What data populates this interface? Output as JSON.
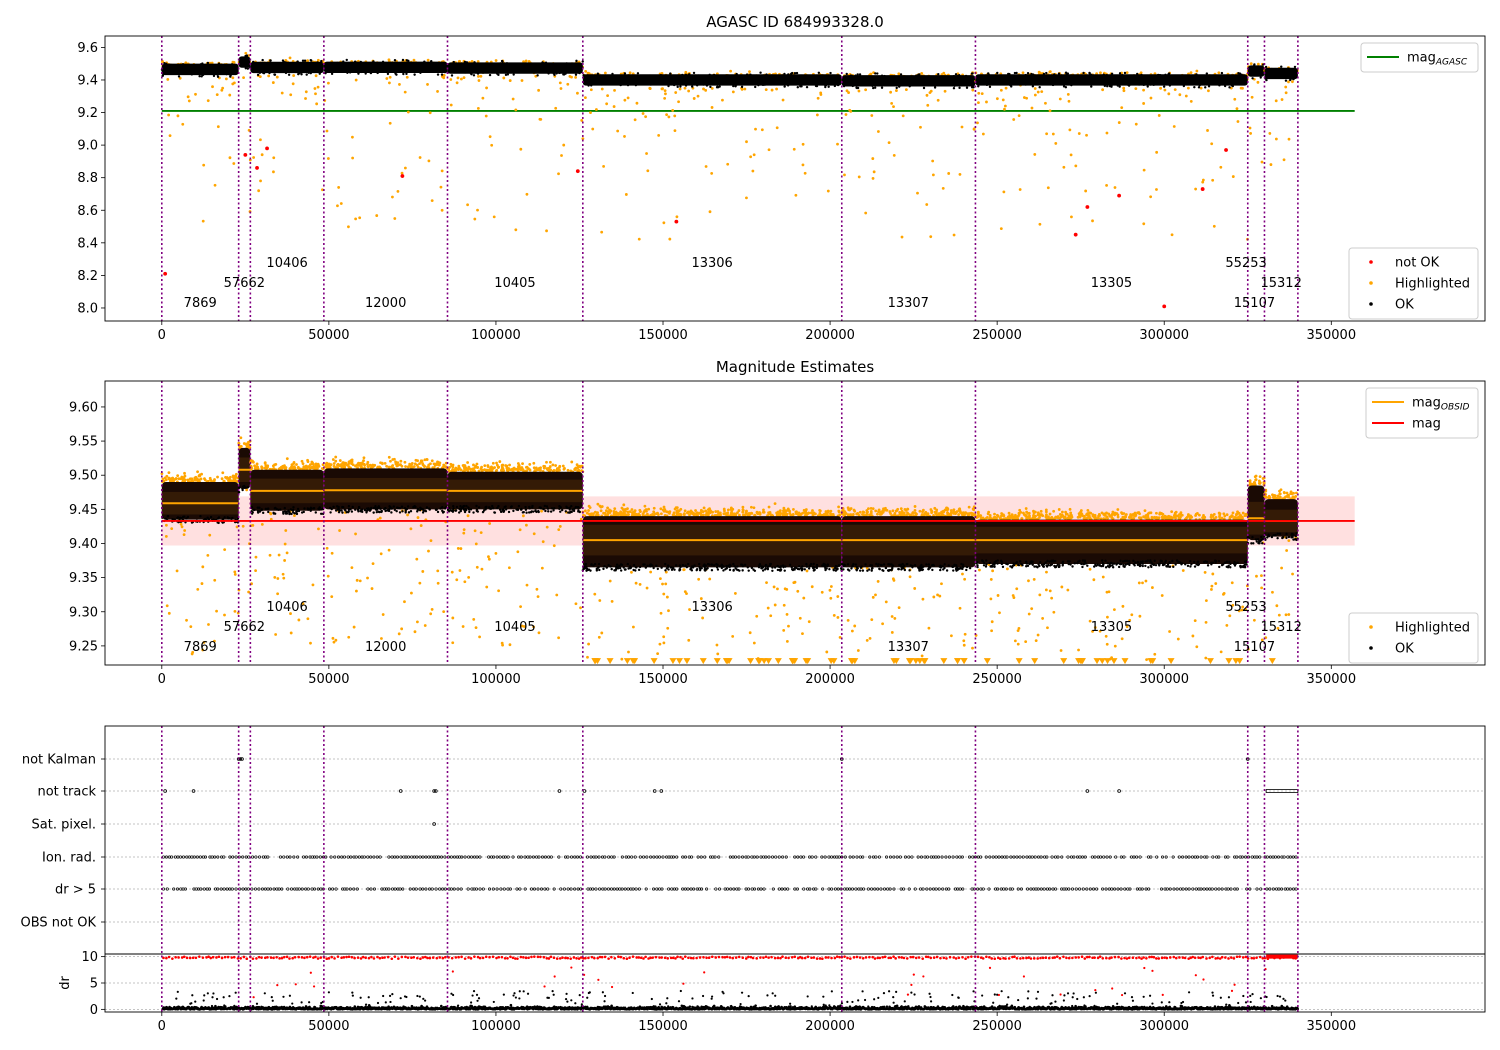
{
  "panels": {
    "top": {
      "title": "AGASC ID 684993328.0"
    },
    "middle": {
      "title": "Magnitude Estimates"
    },
    "bottom": {
      "dr_ylabel": "dr"
    }
  },
  "chart_data": [
    {
      "type": "scatter",
      "id": "top",
      "title": "AGASC ID 684993328.0",
      "xlabel": "",
      "ylabel": "",
      "xlim": [
        -17000,
        396000
      ],
      "ylim": [
        7.92,
        9.67
      ],
      "xticks": [
        0,
        50000,
        100000,
        150000,
        200000,
        250000,
        300000,
        350000
      ],
      "yticks": [
        8.0,
        8.2,
        8.4,
        8.6,
        8.8,
        9.0,
        9.2,
        9.4,
        9.6
      ],
      "yticks_labels": [
        "8.0",
        "8.2",
        "8.4",
        "8.6",
        "8.8",
        "9.0",
        "9.2",
        "9.4",
        "9.6"
      ],
      "legends": [
        {
          "position": "upper-right",
          "entries": [
            {
              "label": "mag",
              "sub": "AGASC",
              "kind": "line",
              "color": "#008000"
            }
          ]
        },
        {
          "position": "lower-right",
          "entries": [
            {
              "label": "not OK",
              "kind": "dot",
              "color": "#ff0000"
            },
            {
              "label": "Highlighted",
              "kind": "dot",
              "color": "#ffa500"
            },
            {
              "label": "OK",
              "kind": "dot",
              "color": "#000000"
            }
          ]
        }
      ],
      "mag_agasc": 9.21,
      "segments": [
        {
          "x0": 0,
          "x1": 23000,
          "center": 9.465,
          "hw": 0.035
        },
        {
          "x0": 23000,
          "x1": 26500,
          "center": 9.51,
          "hw": 0.035
        },
        {
          "x0": 26500,
          "x1": 48500,
          "center": 9.477,
          "hw": 0.035
        },
        {
          "x0": 48500,
          "x1": 85500,
          "center": 9.478,
          "hw": 0.035
        },
        {
          "x0": 85500,
          "x1": 126000,
          "center": 9.473,
          "hw": 0.035
        },
        {
          "x0": 126000,
          "x1": 203500,
          "center": 9.4,
          "hw": 0.035
        },
        {
          "x0": 203500,
          "x1": 243500,
          "center": 9.395,
          "hw": 0.035
        },
        {
          "x0": 243500,
          "x1": 325000,
          "center": 9.4,
          "hw": 0.035
        },
        {
          "x0": 325000,
          "x1": 330000,
          "center": 9.455,
          "hw": 0.035
        },
        {
          "x0": 330000,
          "x1": 340000,
          "center": 9.44,
          "hw": 0.035
        }
      ],
      "not_ok_points": {
        "x": [
          1000,
          25000,
          28500,
          31500,
          72000,
          124500,
          154000,
          273500,
          277000,
          286500,
          300000,
          318500,
          311500
        ],
        "y": [
          8.21,
          8.94,
          8.86,
          8.98,
          8.81,
          8.84,
          8.53,
          8.45,
          8.62,
          8.69,
          8.01,
          8.97,
          8.73
        ]
      }
    },
    {
      "type": "scatter",
      "id": "middle",
      "title": "Magnitude Estimates",
      "xlabel": "",
      "ylabel": "",
      "xlim": [
        -17000,
        396000
      ],
      "ylim": [
        9.222,
        9.638
      ],
      "xticks": [
        0,
        50000,
        100000,
        150000,
        200000,
        250000,
        300000,
        350000
      ],
      "yticks": [
        9.25,
        9.3,
        9.35,
        9.4,
        9.45,
        9.5,
        9.55,
        9.6
      ],
      "yticks_labels": [
        "9.25",
        "9.30",
        "9.35",
        "9.40",
        "9.45",
        "9.50",
        "9.55",
        "9.60"
      ],
      "legends": [
        {
          "position": "upper-right",
          "entries": [
            {
              "label": "mag",
              "sub": "OBSID",
              "kind": "line",
              "color": "#ffa500"
            },
            {
              "label": "mag",
              "kind": "line",
              "color": "#ff0000"
            }
          ]
        },
        {
          "position": "lower-right",
          "entries": [
            {
              "label": "Highlighted",
              "kind": "dot",
              "color": "#ffa500"
            },
            {
              "label": "OK",
              "kind": "dot",
              "color": "#000000"
            }
          ]
        }
      ],
      "mag": 9.433,
      "mag_band": [
        9.397,
        9.469
      ],
      "segments": [
        {
          "x0": 0,
          "x1": 23000,
          "mag_obsid": 9.459,
          "low": 9.435,
          "high": 9.49
        },
        {
          "x0": 23000,
          "x1": 26500,
          "mag_obsid": 9.508,
          "low": 9.48,
          "high": 9.54
        },
        {
          "x0": 26500,
          "x1": 48500,
          "mag_obsid": 9.477,
          "low": 9.448,
          "high": 9.508
        },
        {
          "x0": 48500,
          "x1": 85500,
          "mag_obsid": 9.478,
          "low": 9.45,
          "high": 9.51
        },
        {
          "x0": 85500,
          "x1": 126000,
          "mag_obsid": 9.477,
          "low": 9.45,
          "high": 9.505
        },
        {
          "x0": 126000,
          "x1": 203500,
          "mag_obsid": 9.405,
          "low": 9.365,
          "high": 9.44
        },
        {
          "x0": 203500,
          "x1": 243500,
          "mag_obsid": 9.405,
          "low": 9.365,
          "high": 9.44
        },
        {
          "x0": 243500,
          "x1": 325000,
          "mag_obsid": 9.405,
          "low": 9.37,
          "high": 9.435
        },
        {
          "x0": 325000,
          "x1": 330000,
          "mag_obsid": 9.437,
          "low": 9.405,
          "high": 9.485
        },
        {
          "x0": 330000,
          "x1": 340000,
          "mag_obsid": 9.433,
          "low": 9.41,
          "high": 9.465
        }
      ]
    },
    {
      "type": "scatter",
      "id": "bottom",
      "title": "",
      "xlim": [
        -17000,
        396000
      ],
      "xticks": [
        0,
        50000,
        100000,
        150000,
        200000,
        250000,
        300000,
        350000
      ],
      "flag_rows": [
        "not Kalman",
        "not track",
        "Sat. pixel.",
        "Ion. rad.",
        "dr > 5",
        "OBS not OK"
      ],
      "dr_ylabel": "dr",
      "dr_ylim": [
        -0.5,
        10.5
      ],
      "dr_yticks": [
        0,
        5,
        10
      ],
      "flag_points": {
        "not Kalman": [
          23000,
          23500,
          24000,
          203500,
          325000
        ],
        "not track": [
          1000,
          9500,
          71500,
          81500,
          82000,
          119000,
          126500,
          147500,
          149500,
          277000,
          286500
        ],
        "Sat. pixel.": [
          81500
        ],
        "dense_ranges": [
          [
            330500,
            340000,
            "not track"
          ]
        ]
      }
    }
  ],
  "obsid_boundaries": [
    0,
    23000,
    26500,
    48500,
    85500,
    126000,
    203500,
    243500,
    325000,
    330000,
    340000
  ],
  "obsid_labels": [
    {
      "text": "7869",
      "x": 11500,
      "row": 2
    },
    {
      "text": "57662",
      "x": 24700,
      "row": 1
    },
    {
      "text": "10406",
      "x": 37500,
      "row": 0
    },
    {
      "text": "12000",
      "x": 67000,
      "row": 2
    },
    {
      "text": "10405",
      "x": 105700,
      "row": 1
    },
    {
      "text": "13306",
      "x": 164700,
      "row": 0
    },
    {
      "text": "13307",
      "x": 223400,
      "row": 2
    },
    {
      "text": "13305",
      "x": 284200,
      "row": 1
    },
    {
      "text": "55253",
      "x": 324500,
      "row": 0
    },
    {
      "text": "15107",
      "x": 327000,
      "row": 2
    },
    {
      "text": "15312",
      "x": 335000,
      "row": 1
    }
  ],
  "colors": {
    "ok": "#000000",
    "highlighted": "#ffa500",
    "not_ok": "#ff0000",
    "mag_agasc": "#008000",
    "mag": "#ff0000",
    "mag_obsid": "#ffa500",
    "boundary": "#800080",
    "band": "#ffe0e0"
  }
}
